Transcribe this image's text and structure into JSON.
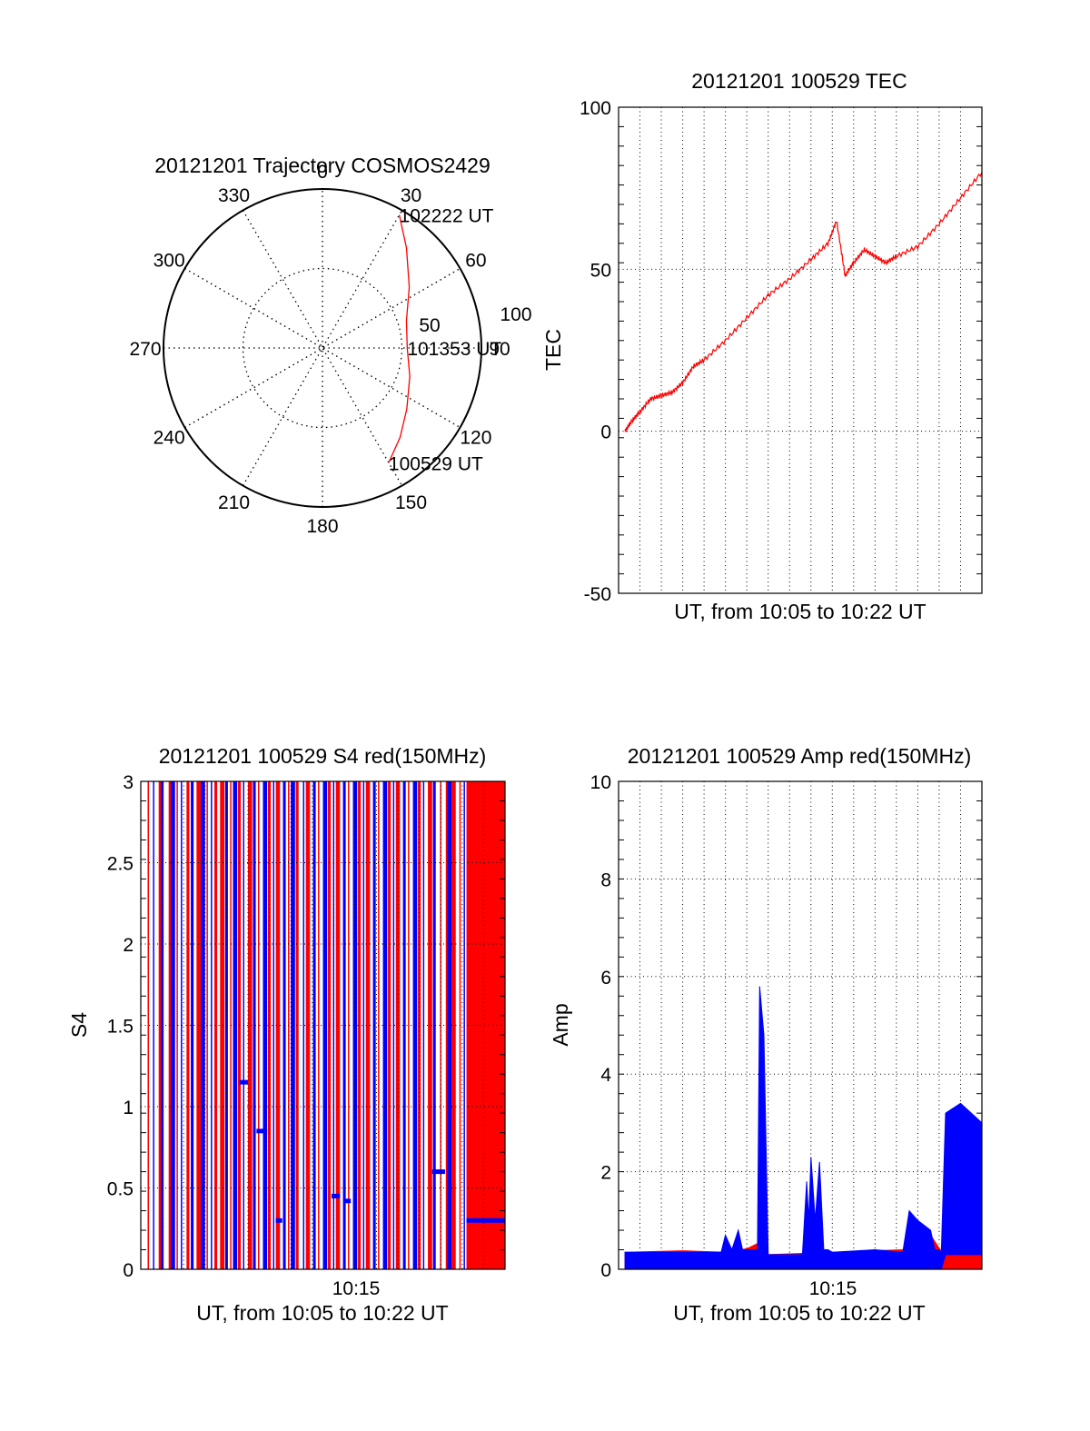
{
  "chart_data": [
    {
      "type": "polar",
      "title": "20121201 Trajectory COSMOS2429",
      "angle_ticks": [
        "0",
        "30",
        "60",
        "90",
        "120",
        "150",
        "180",
        "210",
        "240",
        "270",
        "300",
        "330"
      ],
      "radius_ticks": [
        "50",
        "100"
      ],
      "color": "#ff0000",
      "series": [
        {
          "points": [
            {
              "az": 150,
              "el": 15
            },
            {
              "az": 139,
              "el": 23
            },
            {
              "az": 126,
              "el": 31
            },
            {
              "az": 108,
              "el": 38
            },
            {
              "az": 90,
              "el": 42
            },
            {
              "az": 72,
              "el": 40
            },
            {
              "az": 55,
              "el": 30
            },
            {
              "az": 40,
              "el": 16
            },
            {
              "az": 30,
              "el": 3
            }
          ]
        }
      ],
      "annotations": [
        {
          "text": "102222 UT",
          "az": 30,
          "el": 3
        },
        {
          "text": "101353 UT",
          "az": 90,
          "el": 42
        },
        {
          "text": "100529 UT",
          "az": 150,
          "el": 15
        }
      ]
    },
    {
      "type": "line",
      "title": "20121201 100529 TEC",
      "xlabel": "UT, from 10:05 to 10:22 UT",
      "ylabel": "TEC",
      "xlim": [
        0,
        17
      ],
      "ylim": [
        -50,
        100
      ],
      "yticks": [
        "100",
        "50",
        "0",
        "-50"
      ],
      "grid": true,
      "color": "#ff0000",
      "series": [
        {
          "x": [
            0.3,
            0.6,
            1.0,
            1.5,
            2.0,
            2.5,
            3.0,
            3.5,
            4.0,
            5.0,
            6.0,
            7.0,
            8.0,
            9.0,
            9.8,
            10.2,
            10.6,
            11.0,
            11.5,
            12.0,
            12.5,
            13.0,
            14.0,
            15.0,
            16.0,
            17.0
          ],
          "y": [
            0,
            3,
            6,
            10,
            11,
            12,
            15,
            20,
            22,
            28,
            35,
            42,
            47,
            53,
            58,
            65,
            48,
            52,
            56,
            54,
            52,
            54,
            57,
            64,
            72,
            80
          ]
        }
      ]
    },
    {
      "type": "line",
      "title": "20121201 100529 S4 red(150MHz)",
      "xlabel": "UT, from 10:05 to 10:22 UT",
      "ylabel": "S4",
      "xlim": [
        0,
        17
      ],
      "ylim": [
        0,
        3
      ],
      "xticks": [
        "10:15"
      ],
      "yticks": [
        "3",
        "2.5",
        "2",
        "1.5",
        "1",
        "0.5",
        "0"
      ],
      "grid": true,
      "series": [
        {
          "color": "#ff0000",
          "spikes": [
            0.35,
            0.9,
            1.4,
            1.7,
            2.2,
            2.7,
            3.1,
            3.5,
            3.8,
            4.2,
            4.6,
            5.1,
            5.5,
            6.0,
            6.4,
            6.9,
            7.3,
            7.8,
            8.3,
            8.8,
            9.2,
            9.7,
            10.2,
            10.6,
            11.1,
            11.6,
            12.0,
            12.5,
            13.0,
            13.5,
            14.0,
            14.3,
            14.6,
            14.9,
            15.3,
            15.6,
            15.9,
            16.2,
            16.5,
            16.8
          ]
        },
        {
          "color": "#0000ff",
          "spikes": [
            0.6,
            1.0,
            1.5,
            1.9,
            2.4,
            2.9,
            3.3,
            4.0,
            4.4,
            4.8,
            5.3,
            5.8,
            6.2,
            6.7,
            7.1,
            7.6,
            8.1,
            8.6,
            9.0,
            9.5,
            10.0,
            10.4,
            10.9,
            11.4,
            11.8,
            12.3,
            12.8,
            13.2,
            13.7,
            14.4,
            15.1
          ],
          "segments": [
            {
              "x0": 4.6,
              "x1": 5.0,
              "y": 1.15
            },
            {
              "x0": 5.4,
              "x1": 5.9,
              "y": 0.85
            },
            {
              "x0": 6.3,
              "x1": 6.6,
              "y": 0.3
            },
            {
              "x0": 8.9,
              "x1": 9.3,
              "y": 0.45
            },
            {
              "x0": 9.5,
              "x1": 9.8,
              "y": 0.42
            },
            {
              "x0": 13.6,
              "x1": 14.2,
              "y": 0.6
            },
            {
              "x0": 15.2,
              "x1": 17.0,
              "y": 0.3
            }
          ]
        }
      ]
    },
    {
      "type": "area",
      "title": "20121201 100529 Amp red(150MHz)",
      "xlabel": "UT, from 10:05 to 10:22 UT",
      "ylabel": "Amp",
      "xlim": [
        0,
        17
      ],
      "ylim": [
        0,
        10
      ],
      "xticks": [
        "10:15"
      ],
      "yticks": [
        "10",
        "8",
        "6",
        "4",
        "2",
        "0"
      ],
      "grid": true,
      "series": [
        {
          "color": "#ff0000",
          "x": [
            0.3,
            3.0,
            5.0,
            6.0,
            6.6,
            7.0,
            10.0,
            13.3,
            14.0,
            14.6,
            15.2,
            17.0
          ],
          "y": [
            0.35,
            0.38,
            0.35,
            0.42,
            0.55,
            0.3,
            0.35,
            0.4,
            0.9,
            0.7,
            0.3,
            0.3
          ]
        },
        {
          "color": "#0000ff",
          "x": [
            0.3,
            4.8,
            5.0,
            5.3,
            5.6,
            5.8,
            6.5,
            6.6,
            6.8,
            7.0,
            8.6,
            8.8,
            8.9,
            9.0,
            9.2,
            9.4,
            9.6,
            9.8,
            10.0,
            12.0,
            13.3,
            13.6,
            14.0,
            14.6,
            14.8,
            15.0,
            15.1,
            15.3,
            16.0,
            17.0
          ],
          "y": [
            0.35,
            0.35,
            0.7,
            0.4,
            0.8,
            0.4,
            0.4,
            5.8,
            4.8,
            0.3,
            0.3,
            1.8,
            1.0,
            2.3,
            1.0,
            2.2,
            0.4,
            0.4,
            0.35,
            0.4,
            0.35,
            1.2,
            1.0,
            0.8,
            0.4,
            0.4,
            0.35,
            3.2,
            3.4,
            3.0
          ],
          "lower": [
            0.0,
            0.0,
            0.0,
            0.0,
            0.0,
            0.0,
            0.0,
            0.0,
            0.0,
            0.0,
            0.0,
            0.0,
            0.0,
            0.0,
            0.0,
            0.0,
            0.0,
            0.0,
            0.0,
            0.0,
            0.0,
            0.0,
            0.0,
            0.0,
            0.0,
            0.0,
            0.0,
            0.3,
            0.3,
            0.3
          ]
        }
      ]
    }
  ]
}
